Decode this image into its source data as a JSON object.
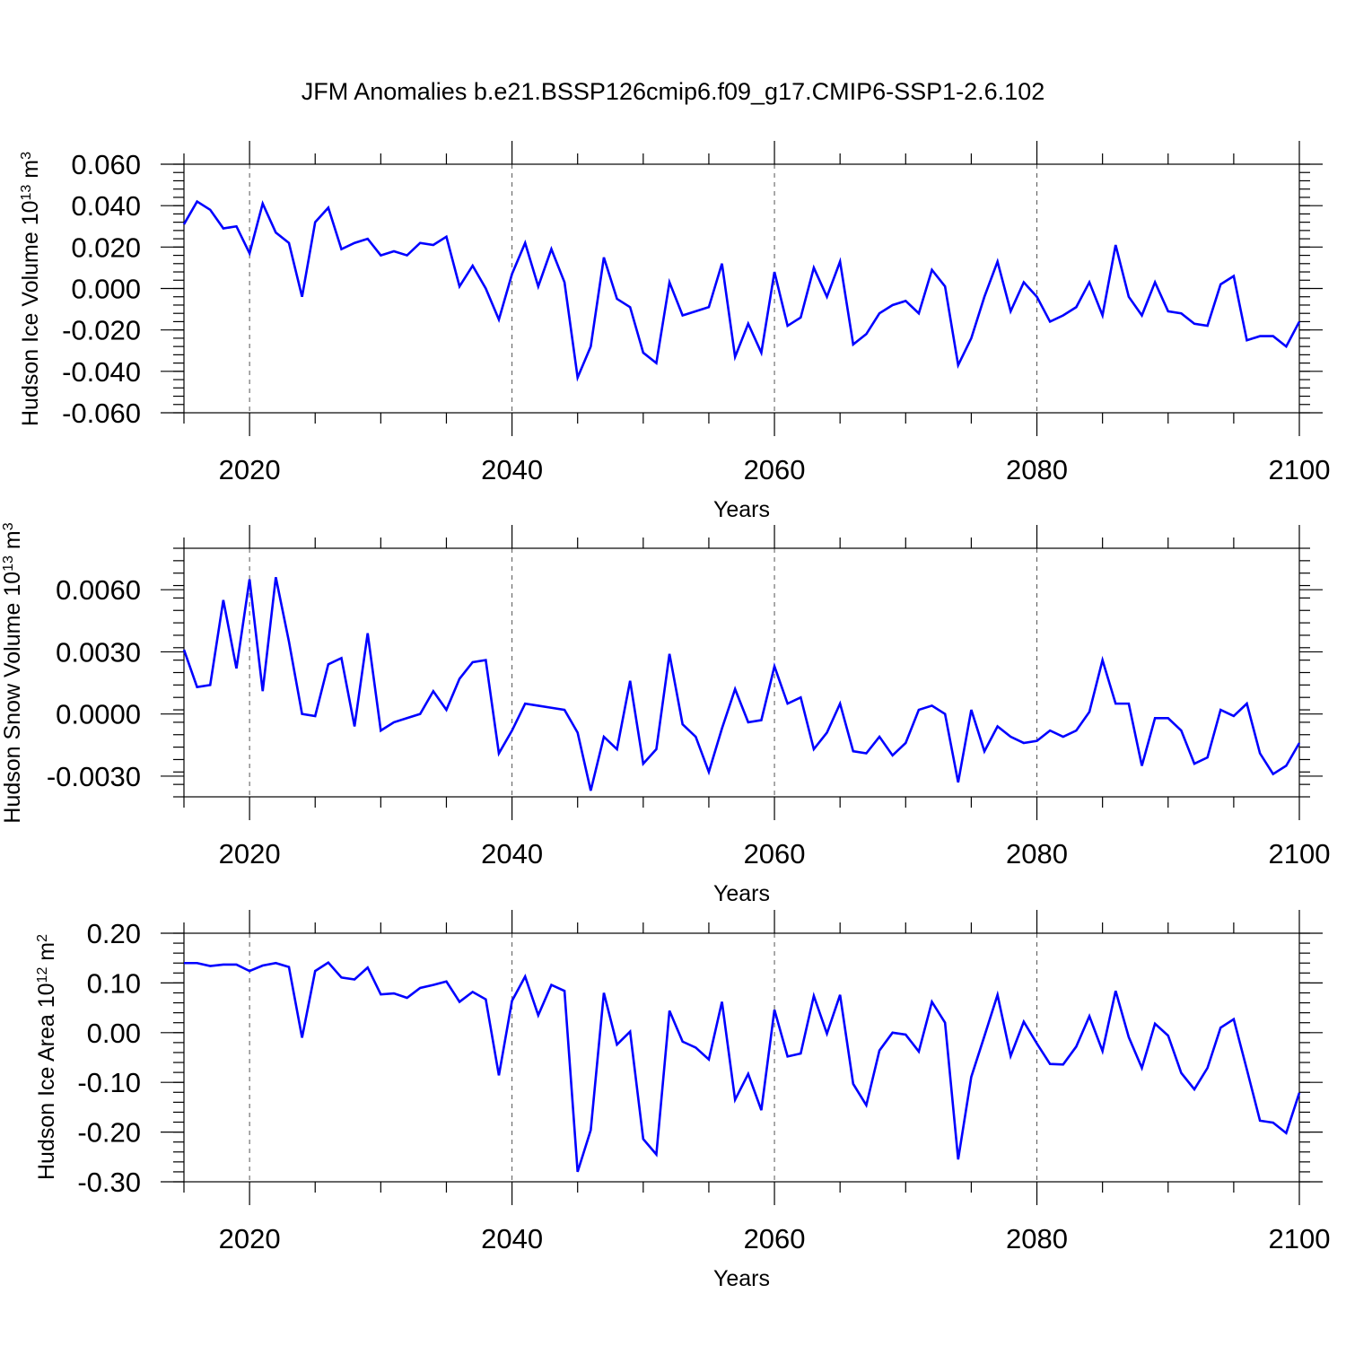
{
  "title": "JFM Anomalies b.e21.BSSP126cmip6.f09_g17.CMIP6-SSP1-2.6.102",
  "chart_data": [
    {
      "type": "line",
      "title": "JFM Anomalies b.e21.BSSP126cmip6.f09_g17.CMIP6-SSP1-2.6.102",
      "xlabel": "Years",
      "ylabel": "Hudson Ice Volume 10",
      "ylabel_exp": "13",
      "ylabel_unit": " m",
      "ylabel_unit_exp": "3",
      "xlim": [
        2015,
        2100
      ],
      "ylim": [
        -0.06,
        0.06
      ],
      "xticks": [
        2020,
        2040,
        2060,
        2080,
        2100
      ],
      "xtick_labels": [
        "2020",
        "2040",
        "2060",
        "2080",
        "2100"
      ],
      "yticks": [
        -0.06,
        -0.04,
        -0.02,
        0.0,
        0.02,
        0.04,
        0.06
      ],
      "ytick_labels": [
        "-0.060",
        "-0.040",
        "-0.020",
        "0.000",
        "0.020",
        "0.040",
        "0.060"
      ],
      "grid_x": [
        2020,
        2040,
        2060,
        2080
      ],
      "color": "#0000ff",
      "x_start": 2015,
      "values": [
        0.031,
        0.042,
        0.038,
        0.029,
        0.03,
        0.017,
        0.041,
        0.027,
        0.022,
        -0.004,
        0.032,
        0.039,
        0.019,
        0.022,
        0.024,
        0.016,
        0.018,
        0.016,
        0.022,
        0.021,
        0.025,
        0.001,
        0.011,
        0.0,
        -0.015,
        0.007,
        0.022,
        0.001,
        0.019,
        0.003,
        -0.043,
        -0.028,
        0.015,
        -0.005,
        -0.009,
        -0.031,
        -0.036,
        0.003,
        -0.013,
        -0.011,
        -0.009,
        0.012,
        -0.033,
        -0.017,
        -0.031,
        0.008,
        -0.018,
        -0.014,
        0.01,
        -0.004,
        0.013,
        -0.027,
        -0.022,
        -0.012,
        -0.008,
        -0.006,
        -0.012,
        0.009,
        0.001,
        -0.037,
        -0.024,
        -0.004,
        0.013,
        -0.011,
        0.003,
        -0.004,
        -0.016,
        -0.013,
        -0.009,
        0.003,
        -0.013,
        0.021,
        -0.004,
        -0.013,
        0.003,
        -0.011,
        -0.012,
        -0.017,
        -0.018,
        0.002,
        0.006,
        -0.025,
        -0.023,
        -0.023,
        -0.028,
        -0.016
      ]
    },
    {
      "type": "line",
      "xlabel": "Years",
      "ylabel": "Hudson Snow Volume 10",
      "ylabel_exp": "13",
      "ylabel_unit": " m",
      "ylabel_unit_exp": "3",
      "xlim": [
        2015,
        2100
      ],
      "ylim": [
        -0.004,
        0.008
      ],
      "xticks": [
        2020,
        2040,
        2060,
        2080,
        2100
      ],
      "xtick_labels": [
        "2020",
        "2040",
        "2060",
        "2080",
        "2100"
      ],
      "yticks": [
        -0.003,
        0.0,
        0.003,
        0.006
      ],
      "ytick_labels": [
        "-0.0030",
        "0.0000",
        "0.0030",
        "0.0060"
      ],
      "grid_x": [
        2020,
        2040,
        2060,
        2080
      ],
      "color": "#0000ff",
      "x_start": 2015,
      "values": [
        0.0031,
        0.0013,
        0.0014,
        0.0055,
        0.0022,
        0.0065,
        0.0011,
        0.0066,
        0.0035,
        0.0,
        -0.0001,
        0.0024,
        0.0027,
        -0.0006,
        0.0039,
        -0.0008,
        -0.0004,
        -0.0002,
        0.0,
        0.0011,
        0.0002,
        0.0017,
        0.0025,
        0.0026,
        -0.0019,
        -0.0008,
        0.0005,
        0.0004,
        0.0003,
        0.0002,
        -0.0009,
        -0.0037,
        -0.0011,
        -0.0017,
        0.0016,
        -0.0024,
        -0.0017,
        0.0029,
        -0.0005,
        -0.0011,
        -0.0028,
        -0.0007,
        0.0012,
        -0.0004,
        -0.0003,
        0.0023,
        0.0005,
        0.0008,
        -0.0017,
        -0.0009,
        0.0005,
        -0.0018,
        -0.0019,
        -0.0011,
        -0.002,
        -0.0014,
        0.0002,
        0.0004,
        0.0,
        -0.0033,
        0.0002,
        -0.0018,
        -0.0006,
        -0.0011,
        -0.0014,
        -0.0013,
        -0.0008,
        -0.0011,
        -0.0008,
        0.0001,
        0.0026,
        0.0005,
        0.0005,
        -0.0025,
        -0.0002,
        -0.0002,
        -0.0008,
        -0.0024,
        -0.0021,
        0.0002,
        -0.0001,
        0.0005,
        -0.0019,
        -0.0029,
        -0.0025,
        -0.0014
      ]
    },
    {
      "type": "line",
      "xlabel": "Years",
      "ylabel": "Hudson Ice Area 10",
      "ylabel_exp": "12",
      "ylabel_unit": " m",
      "ylabel_unit_exp": "2",
      "xlim": [
        2015,
        2100
      ],
      "ylim": [
        -0.3,
        0.2
      ],
      "xticks": [
        2020,
        2040,
        2060,
        2080,
        2100
      ],
      "xtick_labels": [
        "2020",
        "2040",
        "2060",
        "2080",
        "2100"
      ],
      "yticks": [
        -0.3,
        -0.2,
        -0.1,
        0.0,
        0.1,
        0.2
      ],
      "ytick_labels": [
        "-0.30",
        "-0.20",
        "-0.10",
        "0.00",
        "0.10",
        "0.20"
      ],
      "grid_x": [
        2020,
        2040,
        2060,
        2080
      ],
      "color": "#0000ff",
      "x_start": 2015,
      "values": [
        0.14,
        0.14,
        0.134,
        0.137,
        0.137,
        0.124,
        0.135,
        0.14,
        0.132,
        -0.01,
        0.124,
        0.141,
        0.111,
        0.107,
        0.131,
        0.077,
        0.079,
        0.07,
        0.09,
        0.096,
        0.103,
        0.062,
        0.082,
        0.067,
        -0.086,
        0.064,
        0.113,
        0.035,
        0.096,
        0.084,
        -0.28,
        -0.196,
        0.08,
        -0.024,
        0.002,
        -0.214,
        -0.245,
        0.044,
        -0.018,
        -0.03,
        -0.054,
        0.062,
        -0.135,
        -0.083,
        -0.156,
        0.046,
        -0.048,
        -0.042,
        0.074,
        -0.002,
        0.076,
        -0.103,
        -0.146,
        -0.036,
        0.0,
        -0.004,
        -0.038,
        0.062,
        0.02,
        -0.255,
        -0.089,
        -0.007,
        0.076,
        -0.047,
        0.022,
        -0.022,
        -0.063,
        -0.064,
        -0.028,
        0.033,
        -0.037,
        0.084,
        -0.009,
        -0.071,
        0.018,
        -0.006,
        -0.081,
        -0.114,
        -0.071,
        0.01,
        0.027,
        -0.074,
        -0.177,
        -0.181,
        -0.202,
        -0.121
      ]
    }
  ]
}
